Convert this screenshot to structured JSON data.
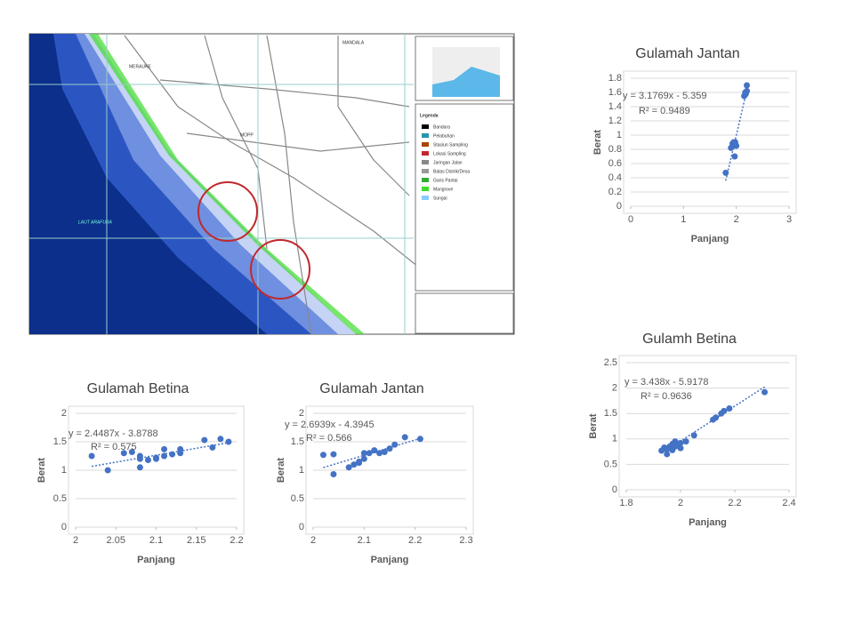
{
  "map": {
    "labels": {
      "merauke": "MERAUKE",
      "mandala": "MANDALA",
      "sea": "LAUT ARAFURA",
      "mopp": "MOPP"
    },
    "legend": {
      "title": "Legenda",
      "items": [
        "Bandara",
        "Pelabuhan",
        "Stasiun Sampling",
        "Lokasi Sampling",
        "Jaringan Jalan",
        "Batas Distrik/Desa",
        "Garis Pantai",
        "Mangrove",
        "Sungai"
      ]
    }
  },
  "chart_data": [
    {
      "type": "scatter",
      "title": "Gulamah Jantan",
      "x_label": "Panjang",
      "y_label": "Berat",
      "color": "#4472c4",
      "grid": true,
      "x": [
        1.8,
        1.9,
        1.93,
        1.95,
        1.95,
        1.97,
        1.98,
        2.0,
        2.15,
        2.17,
        2.18,
        2.2,
        2.2
      ],
      "values": [
        0.47,
        0.82,
        0.88,
        0.85,
        0.9,
        0.7,
        0.9,
        0.85,
        1.55,
        1.6,
        1.58,
        1.7,
        1.62
      ],
      "xlim": [
        0,
        3
      ],
      "xticks": [
        0,
        1,
        2,
        3
      ],
      "ylim": [
        0,
        1.8
      ],
      "yticks": [
        0,
        0.2,
        0.4,
        0.6,
        0.8,
        1,
        1.2,
        1.4,
        1.6,
        1.8
      ],
      "trendline": {
        "slope": 3.1769,
        "intercept": -5.359,
        "label": "y = 3.1769x - 5.359",
        "r2_label": "R² = 0.9489"
      }
    },
    {
      "type": "scatter",
      "title": "Gulamh Betina",
      "x_label": "Panjang",
      "y_label": "Berat",
      "color": "#4472c4",
      "grid": true,
      "x": [
        1.93,
        1.94,
        1.95,
        1.95,
        1.96,
        1.97,
        1.97,
        1.98,
        1.98,
        1.99,
        2.0,
        2.0,
        2.02,
        2.05,
        2.12,
        2.13,
        2.15,
        2.16,
        2.18,
        2.31
      ],
      "values": [
        0.77,
        0.83,
        0.7,
        0.8,
        0.85,
        0.78,
        0.9,
        0.95,
        0.85,
        0.88,
        0.92,
        0.82,
        0.95,
        1.07,
        1.38,
        1.42,
        1.5,
        1.55,
        1.6,
        1.92
      ],
      "xlim": [
        1.8,
        2.4
      ],
      "xticks": [
        1.8,
        2,
        2.2,
        2.4
      ],
      "ylim": [
        0,
        2.5
      ],
      "yticks": [
        0,
        0.5,
        1,
        1.5,
        2,
        2.5
      ],
      "trendline": {
        "slope": 3.438,
        "intercept": -5.9178,
        "label": "y = 3.438x - 5.9178",
        "r2_label": "R² = 0.9636"
      }
    },
    {
      "type": "scatter",
      "title": "Gulamah Betina",
      "x_label": "Panjang",
      "y_label": "Berat",
      "color": "#4472c4",
      "grid": true,
      "x": [
        2.02,
        2.04,
        2.06,
        2.07,
        2.08,
        2.08,
        2.08,
        2.09,
        2.1,
        2.1,
        2.11,
        2.11,
        2.12,
        2.13,
        2.13,
        2.16,
        2.17,
        2.18,
        2.19
      ],
      "values": [
        1.25,
        1.0,
        1.3,
        1.32,
        1.05,
        1.2,
        1.25,
        1.18,
        1.22,
        1.2,
        1.25,
        1.37,
        1.28,
        1.3,
        1.37,
        1.53,
        1.4,
        1.55,
        1.5
      ],
      "xlim": [
        2,
        2.2
      ],
      "xticks": [
        2,
        2.05,
        2.1,
        2.15,
        2.2
      ],
      "ylim": [
        0,
        2
      ],
      "yticks": [
        0,
        0.5,
        1,
        1.5,
        2
      ],
      "trendline": {
        "slope": 2.4487,
        "intercept": -3.8788,
        "label": "y = 2.4487x - 3.8788",
        "r2_label": "R² = 0.575"
      }
    },
    {
      "type": "scatter",
      "title": "Gulamah Jantan",
      "x_label": "Panjang",
      "y_label": "Berat",
      "color": "#4472c4",
      "grid": true,
      "x": [
        2.02,
        2.04,
        2.04,
        2.07,
        2.08,
        2.09,
        2.09,
        2.1,
        2.1,
        2.11,
        2.12,
        2.13,
        2.14,
        2.15,
        2.16,
        2.18,
        2.21
      ],
      "values": [
        1.27,
        0.93,
        1.28,
        1.05,
        1.1,
        1.13,
        1.15,
        1.3,
        1.2,
        1.3,
        1.35,
        1.3,
        1.32,
        1.38,
        1.45,
        1.58,
        1.55
      ],
      "xlim": [
        2,
        2.3
      ],
      "xticks": [
        2,
        2.1,
        2.2,
        2.3
      ],
      "ylim": [
        0,
        2
      ],
      "yticks": [
        0,
        0.5,
        1,
        1.5,
        2
      ],
      "trendline": {
        "slope": 2.6939,
        "intercept": -4.3945,
        "label": "y = 2.6939x - 4.3945",
        "r2_label": "R² = 0.566"
      }
    }
  ]
}
